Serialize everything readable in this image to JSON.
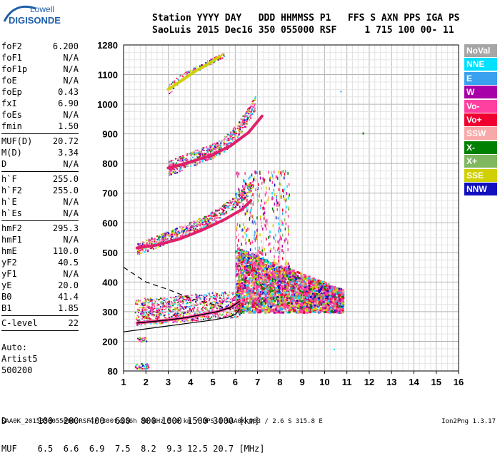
{
  "logo": {
    "line1": "Lowell",
    "line2": "DIGISONDE"
  },
  "header": {
    "row1": "Station YYYY DAY   DDD HHMMSS P1   FFS S AXN PPS IGA PS",
    "row2": "SaoLuis 2015 Dec16 350 055000 RSF     1 715 100 00- 11"
  },
  "params_group1": [
    {
      "label": "foF2",
      "value": "6.200"
    },
    {
      "label": "foF1",
      "value": "N/A"
    },
    {
      "label": "foF1p",
      "value": "N/A"
    },
    {
      "label": "foE",
      "value": "N/A"
    },
    {
      "label": "foEp",
      "value": "0.43"
    },
    {
      "label": "fxI",
      "value": "6.90"
    },
    {
      "label": "foEs",
      "value": "N/A"
    },
    {
      "label": "fmin",
      "value": "1.50"
    }
  ],
  "params_group2": [
    {
      "label": "MUF(D)",
      "value": "20.72"
    },
    {
      "label": "M(D)",
      "value": "3.34"
    },
    {
      "label": "D",
      "value": "N/A"
    }
  ],
  "params_group3": [
    {
      "label": "h`F",
      "value": "255.0"
    },
    {
      "label": "h`F2",
      "value": "255.0"
    },
    {
      "label": "h`E",
      "value": "N/A"
    },
    {
      "label": "h`Es",
      "value": "N/A"
    }
  ],
  "params_group4": [
    {
      "label": "hmF2",
      "value": "295.3"
    },
    {
      "label": "hmF1",
      "value": "N/A"
    },
    {
      "label": "hmE",
      "value": "110.0"
    },
    {
      "label": "yF2",
      "value": "40.5"
    },
    {
      "label": "yF1",
      "value": "N/A"
    },
    {
      "label": "yE",
      "value": "20.0"
    },
    {
      "label": "B0",
      "value": "41.4"
    },
    {
      "label": "B1",
      "value": "1.85"
    }
  ],
  "params_group5": [
    {
      "label": "C-level",
      "value": "22"
    }
  ],
  "autoscaling": {
    "line1": "Auto:",
    "line2": "Artist5",
    "line3": "500200"
  },
  "legend": [
    {
      "label": "NoVal",
      "color": "#a6a6a6"
    },
    {
      "label": "NNE",
      "color": "#00e0ff"
    },
    {
      "label": "E",
      "color": "#3aa0f0"
    },
    {
      "label": "W",
      "color": "#a800a8"
    },
    {
      "label": "Vo-",
      "color": "#ff40a0"
    },
    {
      "label": "Vo+",
      "color": "#f00030"
    },
    {
      "label": "SSW",
      "color": "#f8a8a8"
    },
    {
      "label": "X-",
      "color": "#008000"
    },
    {
      "label": "X+",
      "color": "#80b860"
    },
    {
      "label": "SSE",
      "color": "#d0d000"
    },
    {
      "label": "NNW",
      "color": "#1010c0"
    }
  ],
  "dmuf": {
    "d_label": "D",
    "d_values": "100  200  400  600  800 1000 1500 3000 [km]",
    "muf_label": "MUF",
    "muf_values": "6.5  6.6  6.9  7.5  8.2  9.3 12.5 20.7 [MHz]"
  },
  "footer": "SAA0K_2015350055000.RSF / 300fx256h 50 kHz 5.0 km / DPS-4 SAA0K 903 / 2.6 S 315.8 E",
  "version": "Ion2Png 1.3.17",
  "chart_data": {
    "type": "scatter",
    "xlabel": "",
    "ylabel": "",
    "xlim": [
      1,
      16
    ],
    "ylim": [
      80,
      1280
    ],
    "x_ticks": [
      1,
      2,
      3,
      4,
      5,
      6,
      7,
      8,
      9,
      10,
      11,
      12,
      13,
      14,
      15,
      16
    ],
    "y_ticks": [
      80,
      200,
      300,
      400,
      500,
      600,
      700,
      800,
      900,
      1000,
      1100,
      1280
    ],
    "grid": true,
    "traces": [
      {
        "name": "o-trace F2",
        "color": "#ff40a0",
        "x": [
          1.6,
          2.2,
          3.0,
          3.8,
          4.5,
          5.2,
          5.8,
          6.2
        ],
        "y": [
          262,
          266,
          272,
          280,
          290,
          300,
          315,
          335
        ]
      },
      {
        "name": "second hop",
        "color": "#e0206a",
        "x": [
          1.6,
          2.5,
          3.5,
          4.5,
          5.5,
          6.3,
          6.7
        ],
        "y": [
          515,
          525,
          545,
          575,
          610,
          645,
          675
        ]
      },
      {
        "name": "third hop",
        "color": "#e0206a",
        "x": [
          3.0,
          3.5,
          4.2,
          5.0,
          5.8,
          6.6,
          7.2
        ],
        "y": [
          785,
          795,
          810,
          830,
          860,
          905,
          960
        ]
      },
      {
        "name": "fourth hop",
        "color": "#d0d000",
        "x": [
          3.0,
          3.6,
          4.2,
          4.8,
          5.3
        ],
        "y": [
          1050,
          1080,
          1120,
          1165,
          1210
        ]
      }
    ],
    "profile_solid": {
      "x": [
        1.0,
        2.0,
        3.0,
        4.0,
        5.0,
        5.6,
        6.0,
        6.2
      ],
      "y": [
        232,
        242,
        252,
        262,
        272,
        280,
        290,
        310
      ]
    },
    "profile_dashed": {
      "x": [
        1.0,
        2.0,
        3.0,
        4.0,
        5.0,
        5.6,
        6.0
      ],
      "y": [
        450,
        400,
        375,
        345,
        325,
        312,
        305
      ]
    }
  }
}
